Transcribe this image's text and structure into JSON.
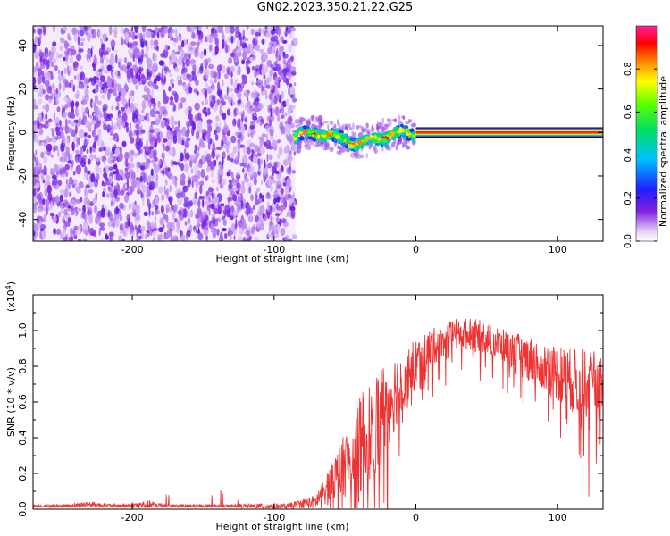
{
  "title": "GN02.2023.350.21.22.G25",
  "chart_data": [
    {
      "type": "heatmap",
      "xlabel": "Height of straight line (km)",
      "ylabel": "Frequency (Hz)",
      "xlim": [
        -270,
        132
      ],
      "ylim": [
        -50,
        49
      ],
      "xticks": [
        -200,
        -100,
        0,
        100
      ],
      "yticks": [
        -40,
        -20,
        0,
        20,
        40
      ],
      "colorbar": {
        "label": "Normalized spectral amplitude",
        "range": [
          0,
          1
        ],
        "ticks": [
          0.0,
          0.2,
          0.4,
          0.6,
          0.8
        ],
        "colormap": "rainbow (white-purple-blue-cyan-green-yellow-red-magenta)"
      },
      "regions": [
        {
          "name": "noise",
          "x_range": [
            -270,
            -85
          ],
          "freq_range": [
            -50,
            49
          ],
          "amplitude": "low (0.1-0.3)"
        },
        {
          "name": "signal",
          "x_range": [
            -85,
            0
          ],
          "freq_center": 0,
          "freq_width": 5,
          "amplitude": "high (0.3-1.0)"
        },
        {
          "name": "tone",
          "x_range": [
            0,
            132
          ],
          "freq_center": 0,
          "amplitude": 1.0
        }
      ]
    },
    {
      "type": "line",
      "xlabel": "Height of straight line (km)",
      "ylabel": "SNR (10 * v/v)",
      "y_scale_label": "(x10",
      "y_scale_exp": "4",
      "y_scale_close": ")",
      "xlim": [
        -270,
        132
      ],
      "ylim": [
        0,
        1.2
      ],
      "xticks": [
        -200,
        -100,
        0,
        100
      ],
      "yticks": [
        0.0,
        0.2,
        0.4,
        0.6,
        0.8,
        1.0
      ],
      "series": [
        {
          "color": "#ee3333",
          "x": [
            -270,
            -250,
            -230,
            -210,
            -190,
            -170,
            -150,
            -130,
            -110,
            -90,
            -70,
            -60,
            -50,
            -40,
            -30,
            -20,
            -10,
            0,
            10,
            20,
            30,
            40,
            50,
            60,
            70,
            80,
            90,
            100,
            110,
            120,
            132
          ],
          "y": [
            0.02,
            0.02,
            0.03,
            0.02,
            0.03,
            0.02,
            0.02,
            0.02,
            0.02,
            0.02,
            0.05,
            0.15,
            0.25,
            0.35,
            0.45,
            0.6,
            0.72,
            0.82,
            0.9,
            0.95,
            0.98,
            0.98,
            0.96,
            0.92,
            0.88,
            0.84,
            0.8,
            0.76,
            0.72,
            0.7,
            0.68
          ],
          "spread": [
            0.01,
            0.01,
            0.02,
            0.01,
            0.03,
            0.01,
            0.01,
            0.01,
            0.02,
            0.02,
            0.05,
            0.12,
            0.2,
            0.3,
            0.35,
            0.3,
            0.2,
            0.15,
            0.12,
            0.1,
            0.1,
            0.1,
            0.1,
            0.1,
            0.12,
            0.14,
            0.16,
            0.18,
            0.2,
            0.22,
            0.22
          ]
        }
      ]
    }
  ]
}
